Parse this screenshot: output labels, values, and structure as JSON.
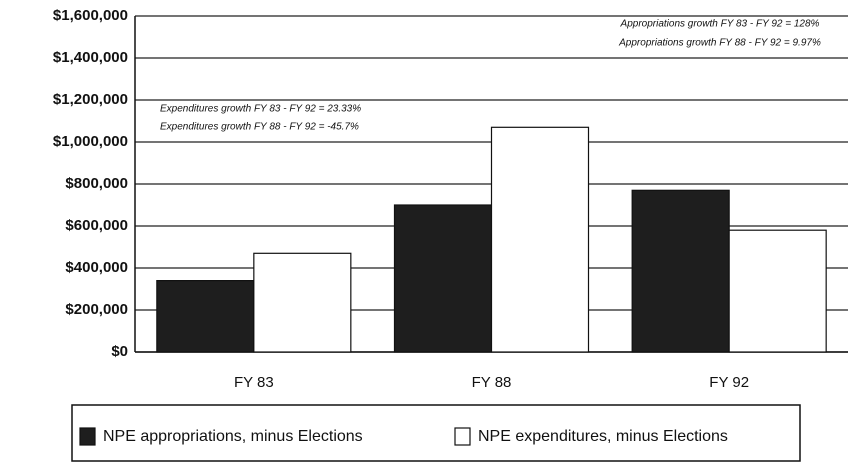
{
  "chart_data": {
    "type": "bar",
    "categories": [
      "FY 83",
      "FY 88",
      "FY 92"
    ],
    "series": [
      {
        "name": "NPE appropriations, minus Elections",
        "color": "#1e1e1e",
        "values": [
          340000,
          700000,
          770000
        ]
      },
      {
        "name": "NPE expenditures, minus Elections",
        "color": "#ffffff",
        "values": [
          470000,
          1070000,
          580000
        ]
      }
    ],
    "ylim": [
      0,
      1600000
    ],
    "yticks": [
      {
        "value": 0,
        "label": "$0"
      },
      {
        "value": 200000,
        "label": "$200,000"
      },
      {
        "value": 400000,
        "label": "$400,000"
      },
      {
        "value": 600000,
        "label": "$600,000"
      },
      {
        "value": 800000,
        "label": "$800,000"
      },
      {
        "value": 1000000,
        "label": "$1,000,000"
      },
      {
        "value": 1200000,
        "label": "$1,200,000"
      },
      {
        "value": 1400000,
        "label": "$1,400,000"
      },
      {
        "value": 1600000,
        "label": "$1,600,000"
      }
    ],
    "grid": true,
    "annotations": [
      "Appropriations growth FY 83 - FY 92 = 128%",
      "Appropriations growth FY 88 - FY 92 = 9.97%",
      "Expenditures growth FY 83 - FY 92 = 23.33%",
      "Expenditures growth FY 88 - FY 92 = -45.7%"
    ],
    "legend": "bottom"
  }
}
